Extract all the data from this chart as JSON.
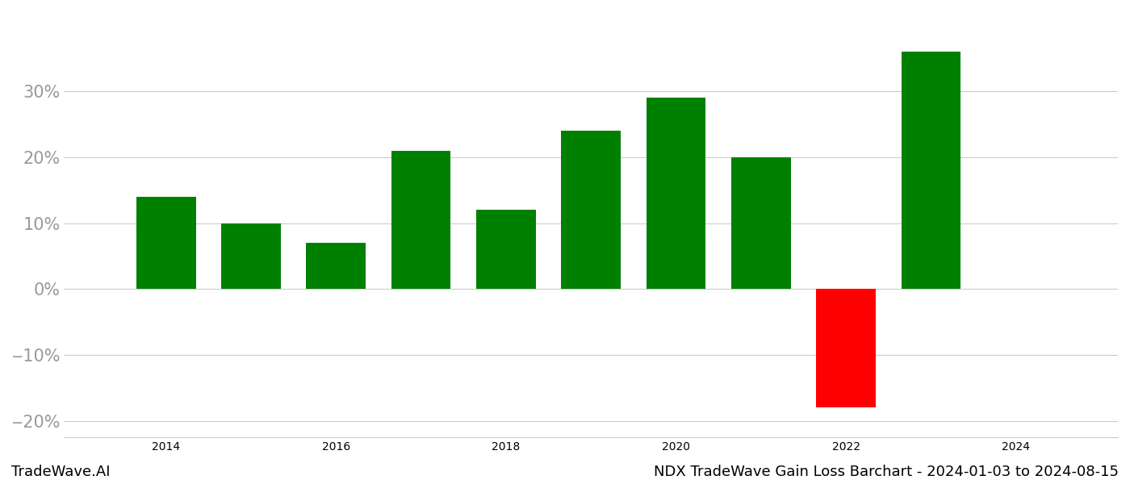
{
  "years": [
    2014,
    2015,
    2016,
    2017,
    2018,
    2019,
    2020,
    2021,
    2022,
    2023
  ],
  "values": [
    0.14,
    0.1,
    0.07,
    0.21,
    0.12,
    0.24,
    0.29,
    0.2,
    -0.18,
    0.36
  ],
  "colors": [
    "#008000",
    "#008000",
    "#008000",
    "#008000",
    "#008000",
    "#008000",
    "#008000",
    "#008000",
    "#ff0000",
    "#008000"
  ],
  "ylim": [
    -0.225,
    0.42
  ],
  "yticks": [
    -0.2,
    -0.1,
    0.0,
    0.1,
    0.2,
    0.3
  ],
  "ytick_labels": [
    "‒20%",
    "‒10%",
    "0%",
    "10%",
    "20%",
    "30%"
  ],
  "xticks": [
    2014,
    2016,
    2018,
    2020,
    2022,
    2024
  ],
  "xlim": [
    2012.8,
    2025.2
  ],
  "bar_width": 0.7,
  "grid_color": "#cccccc",
  "background_color": "#ffffff",
  "text_color": "#999999",
  "footer_left": "TradeWave.AI",
  "footer_right": "NDX TradeWave Gain Loss Barchart - 2024-01-03 to 2024-08-15",
  "footer_fontsize": 13,
  "tick_fontsize": 15
}
